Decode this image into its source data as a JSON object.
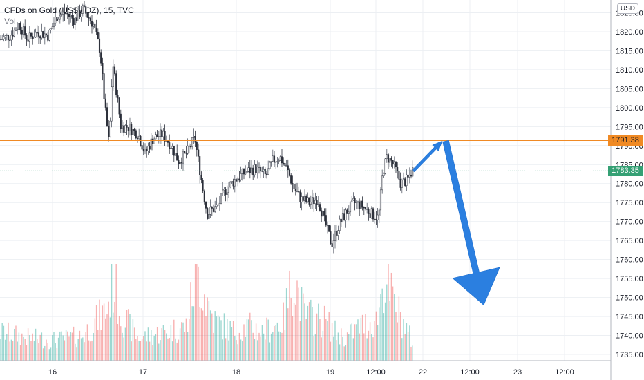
{
  "header": {
    "symbol": "CFDs on Gold (US$ / OZ), 15, TVC",
    "volume_label": "Vol",
    "currency": "USD"
  },
  "price_tags": {
    "resistance": "1791.38",
    "last": "1783.35"
  },
  "colors": {
    "up": "#26a69a",
    "down": "#ef5350",
    "candle": "#2a2e39",
    "resistance_line": "#f08a24",
    "last_price": "#35a074",
    "arrow": "#2b7fe0",
    "grid": "#eceff3"
  },
  "chart_data": {
    "type": "candlestick",
    "ylim": [
      1733,
      1828
    ],
    "y_ticks": [
      1825,
      1820,
      1815,
      1810,
      1805,
      1800,
      1795,
      1790,
      1785,
      1780,
      1775,
      1770,
      1765,
      1760,
      1755,
      1750,
      1745,
      1740,
      1735
    ],
    "x_ticks": [
      "16",
      "17",
      "18",
      "19",
      "12:00",
      "22",
      "12:00",
      "23",
      "12:00"
    ],
    "resistance_level": 1791.38,
    "last_price": 1783.35,
    "price_path": [
      [
        0,
        1818
      ],
      [
        15,
        1819
      ],
      [
        28,
        1822
      ],
      [
        40,
        1818
      ],
      [
        55,
        1820
      ],
      [
        70,
        1819
      ],
      [
        82,
        1824
      ],
      [
        95,
        1825
      ],
      [
        108,
        1823
      ],
      [
        120,
        1826
      ],
      [
        135,
        1822
      ],
      [
        145,
        1815
      ],
      [
        152,
        1800
      ],
      [
        158,
        1790
      ],
      [
        163,
        1812
      ],
      [
        168,
        1805
      ],
      [
        175,
        1795
      ],
      [
        185,
        1795
      ],
      [
        200,
        1793
      ],
      [
        210,
        1788
      ],
      [
        222,
        1792
      ],
      [
        235,
        1793
      ],
      [
        248,
        1790
      ],
      [
        258,
        1786
      ],
      [
        270,
        1788
      ],
      [
        282,
        1792
      ],
      [
        288,
        1785
      ],
      [
        294,
        1778
      ],
      [
        300,
        1772
      ],
      [
        306,
        1773
      ],
      [
        315,
        1774
      ],
      [
        325,
        1778
      ],
      [
        340,
        1781
      ],
      [
        355,
        1783
      ],
      [
        370,
        1784
      ],
      [
        385,
        1782
      ],
      [
        395,
        1786
      ],
      [
        405,
        1787
      ],
      [
        415,
        1784
      ],
      [
        425,
        1779
      ],
      [
        435,
        1776
      ],
      [
        448,
        1775
      ],
      [
        460,
        1776
      ],
      [
        470,
        1770
      ],
      [
        480,
        1764
      ],
      [
        490,
        1769
      ],
      [
        500,
        1772
      ],
      [
        512,
        1775
      ],
      [
        525,
        1774
      ],
      [
        538,
        1772
      ],
      [
        548,
        1771
      ],
      [
        554,
        1783
      ],
      [
        560,
        1787
      ],
      [
        566,
        1786
      ],
      [
        572,
        1784
      ],
      [
        580,
        1780
      ],
      [
        590,
        1781
      ],
      [
        598,
        1784
      ]
    ],
    "volume_path": [
      [
        0,
        0.25
      ],
      [
        40,
        0.2
      ],
      [
        80,
        0.18
      ],
      [
        120,
        0.22
      ],
      [
        155,
        0.45
      ],
      [
        165,
        0.7
      ],
      [
        175,
        0.4
      ],
      [
        200,
        0.2
      ],
      [
        240,
        0.25
      ],
      [
        270,
        0.3
      ],
      [
        285,
        0.8
      ],
      [
        295,
        0.6
      ],
      [
        310,
        0.35
      ],
      [
        340,
        0.25
      ],
      [
        360,
        0.3
      ],
      [
        380,
        0.25
      ],
      [
        410,
        0.35
      ],
      [
        425,
        0.75
      ],
      [
        440,
        0.4
      ],
      [
        470,
        0.35
      ],
      [
        485,
        0.25
      ],
      [
        500,
        0.2
      ],
      [
        520,
        0.3
      ],
      [
        545,
        0.35
      ],
      [
        556,
        0.72
      ],
      [
        570,
        0.5
      ],
      [
        590,
        0.25
      ],
      [
        598,
        0.15
      ]
    ],
    "projection": {
      "up_leg": [
        [
          598,
          1783.35
        ],
        [
          640,
          1791.2
        ]
      ],
      "down_leg": [
        [
          645,
          1791.2
        ],
        [
          700,
          1748
        ]
      ]
    }
  }
}
